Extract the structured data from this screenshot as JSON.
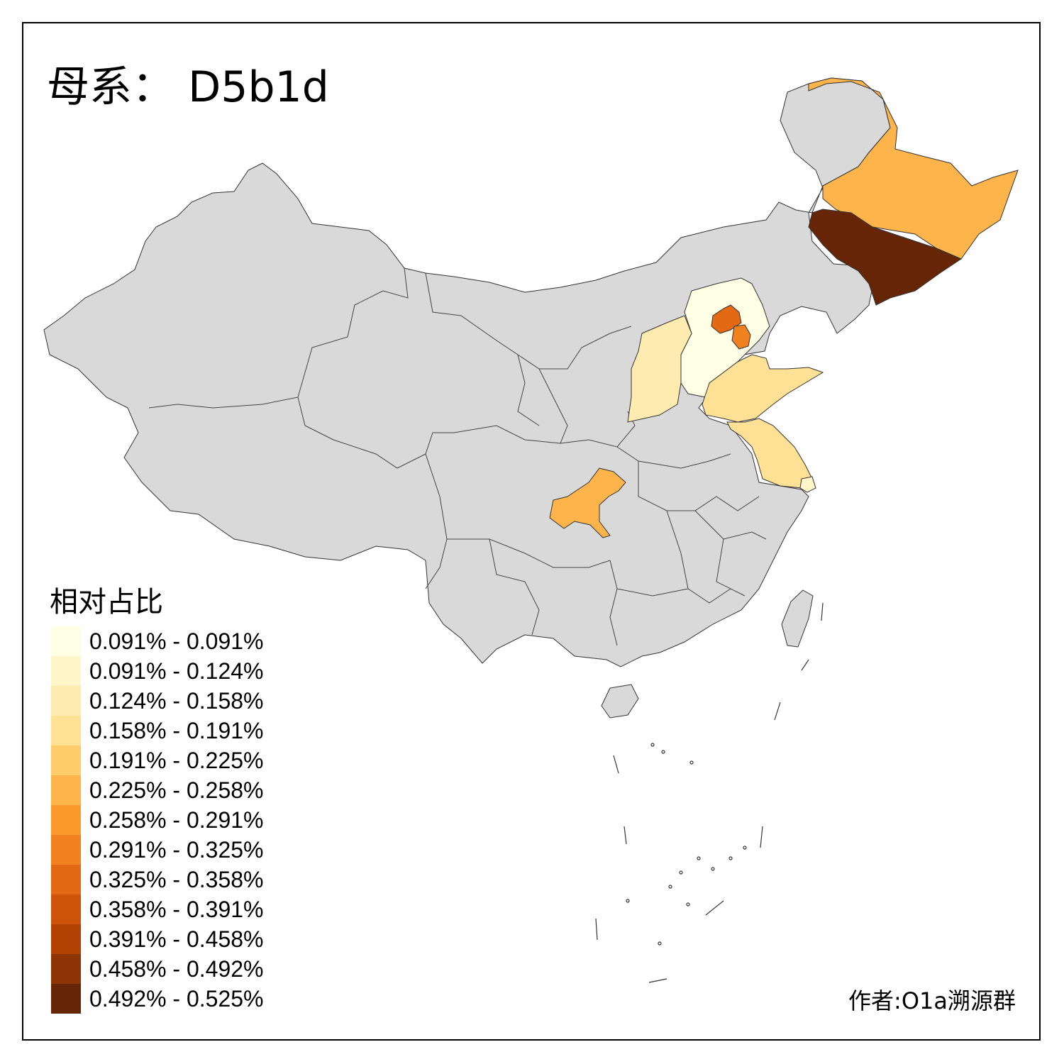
{
  "title": "母系： D5b1d",
  "legend": {
    "title": "相对占比",
    "classes": [
      {
        "label": "0.091% - 0.091%",
        "color": "#FFFFE5"
      },
      {
        "label": "0.091% - 0.124%",
        "color": "#FFF7C9"
      },
      {
        "label": "0.124% - 0.158%",
        "color": "#FEEBB0"
      },
      {
        "label": "0.158% - 0.191%",
        "color": "#FEE195"
      },
      {
        "label": "0.191% - 0.225%",
        "color": "#FECC6B"
      },
      {
        "label": "0.225% - 0.258%",
        "color": "#FDB44A"
      },
      {
        "label": "0.258% - 0.291%",
        "color": "#FB9B2E"
      },
      {
        "label": "0.291% - 0.325%",
        "color": "#F0811E"
      },
      {
        "label": "0.325% - 0.358%",
        "color": "#E36914"
      },
      {
        "label": "0.358% - 0.391%",
        "color": "#CD530A"
      },
      {
        "label": "0.391% - 0.458%",
        "color": "#B14204"
      },
      {
        "label": "0.458% - 0.492%",
        "color": "#8E3304"
      },
      {
        "label": "0.492% - 0.525%",
        "color": "#662506"
      }
    ]
  },
  "author": "作者:O1a溯源群",
  "map": {
    "no_data_color": "#D9D9D9",
    "outline_color": "#333333",
    "regions": [
      {
        "name": "Jilin",
        "color": "#662506"
      },
      {
        "name": "Heilongjiang",
        "color": "#FDB44A"
      },
      {
        "name": "Beijing",
        "color": "#E36914"
      },
      {
        "name": "Tianjin",
        "color": "#F0811E"
      },
      {
        "name": "Hebei",
        "color": "#FFFFE5"
      },
      {
        "name": "Shanxi",
        "color": "#FEEBB0"
      },
      {
        "name": "Shandong",
        "color": "#FEE195"
      },
      {
        "name": "Jiangsu",
        "color": "#FEE195"
      },
      {
        "name": "Chongqing",
        "color": "#FDB44A"
      },
      {
        "name": "Shanghai",
        "color": "#FFF7C9"
      }
    ]
  }
}
